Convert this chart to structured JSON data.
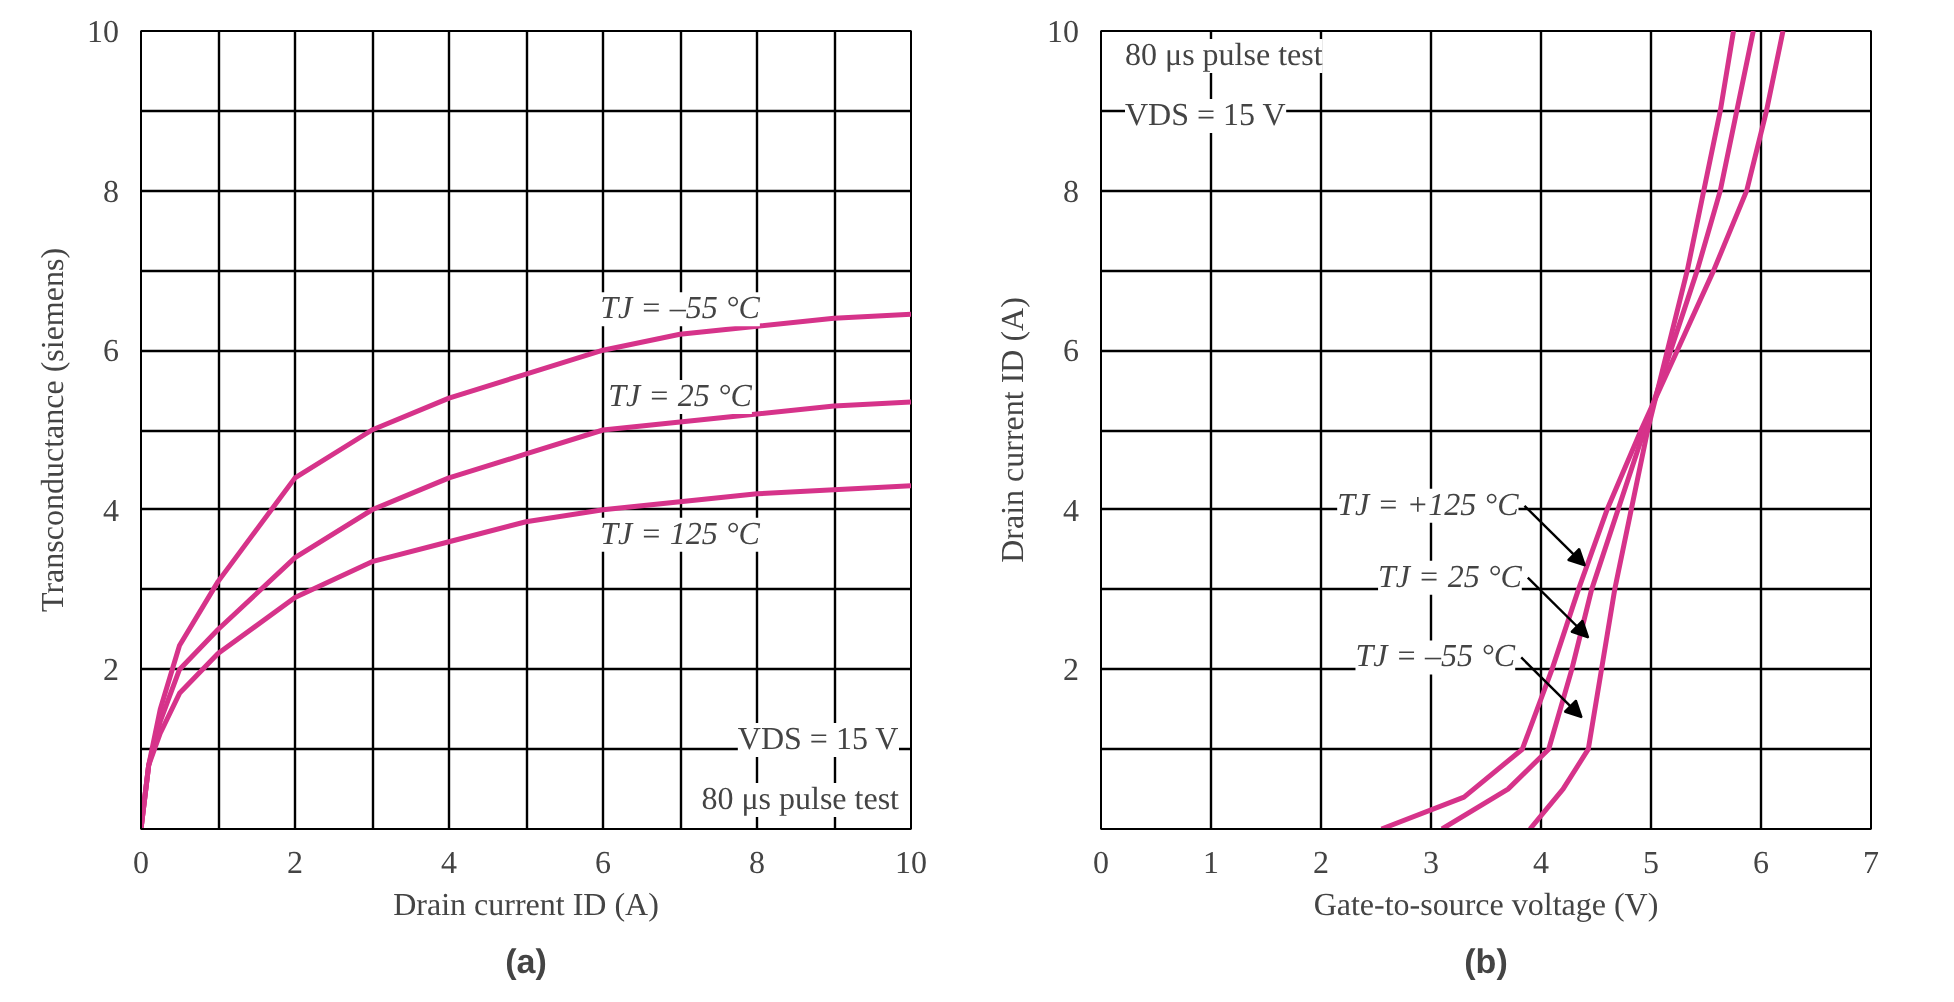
{
  "chart_data": [
    {
      "type": "line",
      "title": "(a)",
      "xlabel": "Drain current ID (A)",
      "ylabel": "Transconductance (siemens)",
      "xlim": [
        0,
        10
      ],
      "ylim": [
        0,
        10
      ],
      "xticks": [
        0,
        {
          "value": 1,
          "label": null
        },
        2,
        {
          "value": 3,
          "label": null
        },
        4,
        {
          "value": 5,
          "label": null
        },
        6,
        {
          "value": 7,
          "label": null
        },
        8,
        {
          "value": 9,
          "label": null
        },
        10
      ],
      "yticks": [
        {
          "value": 0,
          "label": null
        },
        {
          "value": 1,
          "label": null
        },
        2,
        {
          "value": 3,
          "label": null
        },
        4,
        {
          "value": 5,
          "label": null
        },
        6,
        {
          "value": 7,
          "label": null
        },
        8,
        {
          "value": 9,
          "label": null
        },
        10
      ],
      "grid": true,
      "line_style": "solid",
      "marker": "none",
      "x": [
        0,
        0.1,
        0.25,
        0.5,
        1,
        2,
        3,
        4,
        5,
        6,
        7,
        8,
        9,
        10
      ],
      "series": [
        {
          "name": "TJ = –55 °C",
          "color": "#d6338a",
          "values": [
            0,
            0.8,
            1.5,
            2.3,
            3.1,
            4.4,
            5.0,
            5.4,
            5.7,
            6.0,
            6.2,
            6.3,
            6.4,
            6.45
          ]
        },
        {
          "name": "TJ = 25 °C",
          "color": "#d6338a",
          "values": [
            0,
            0.8,
            1.35,
            2.0,
            2.5,
            3.4,
            4.0,
            4.4,
            4.7,
            5.0,
            5.1,
            5.2,
            5.3,
            5.35
          ]
        },
        {
          "name": "TJ = 125 °C",
          "color": "#d6338a",
          "values": [
            0,
            0.8,
            1.2,
            1.7,
            2.2,
            2.9,
            3.35,
            3.6,
            3.85,
            4.0,
            4.1,
            4.2,
            4.25,
            4.3
          ]
        }
      ],
      "annotations": [
        "VDS = 15 V",
        "80 μs pulse test"
      ]
    },
    {
      "type": "line",
      "title": "(b)",
      "xlabel": "Gate-to-source voltage (V)",
      "ylabel": "Drain current ID (A)",
      "xlim": [
        0,
        7
      ],
      "ylim": [
        0,
        10
      ],
      "xticks": [
        0,
        1,
        2,
        3,
        4,
        5,
        6,
        7
      ],
      "yticks": [
        {
          "value": 0,
          "label": null
        },
        {
          "value": 1,
          "label": null
        },
        2,
        {
          "value": 3,
          "label": null
        },
        4,
        {
          "value": 5,
          "label": null
        },
        6,
        {
          "value": 7,
          "label": null
        },
        8,
        {
          "value": 9,
          "label": null
        },
        10
      ],
      "grid": true,
      "line_style": "solid",
      "marker": "none",
      "series": [
        {
          "color": "#d6338a",
          "x": [
            2.55,
            3.3,
            3.83,
            4.1,
            4.34,
            4.6,
            4.91,
            5.24,
            5.57,
            5.87,
            6.05,
            6.2
          ],
          "values": [
            0,
            0.4,
            1,
            2,
            3,
            4,
            5,
            6,
            7,
            8,
            9,
            10
          ]
        },
        {
          "color": "#d6338a",
          "x": [
            3.1,
            3.7,
            4.07,
            4.28,
            4.46,
            4.7,
            4.94,
            5.18,
            5.42,
            5.63,
            5.78,
            5.93
          ],
          "values": [
            0,
            0.5,
            1,
            2,
            3,
            4,
            5,
            6,
            7,
            8,
            9,
            10
          ]
        },
        {
          "color": "#d6338a",
          "x": [
            3.9,
            4.2,
            4.43,
            4.55,
            4.67,
            4.82,
            4.97,
            5.15,
            5.33,
            5.48,
            5.63,
            5.75
          ],
          "values": [
            0,
            0.5,
            1,
            2,
            3,
            4,
            5,
            6,
            7,
            8,
            9,
            10
          ]
        }
      ],
      "annotations": [
        "80 μs pulse test",
        "VDS = 15 V",
        {
          "text": "TJ = +125 °C",
          "x": 4.4,
          "y": 3.3
        },
        {
          "text": "TJ = 25 °C",
          "x": 4.43,
          "y": 2.4
        },
        {
          "text": "TJ = –55 °C",
          "x": 4.37,
          "y": 1.4
        }
      ]
    }
  ]
}
